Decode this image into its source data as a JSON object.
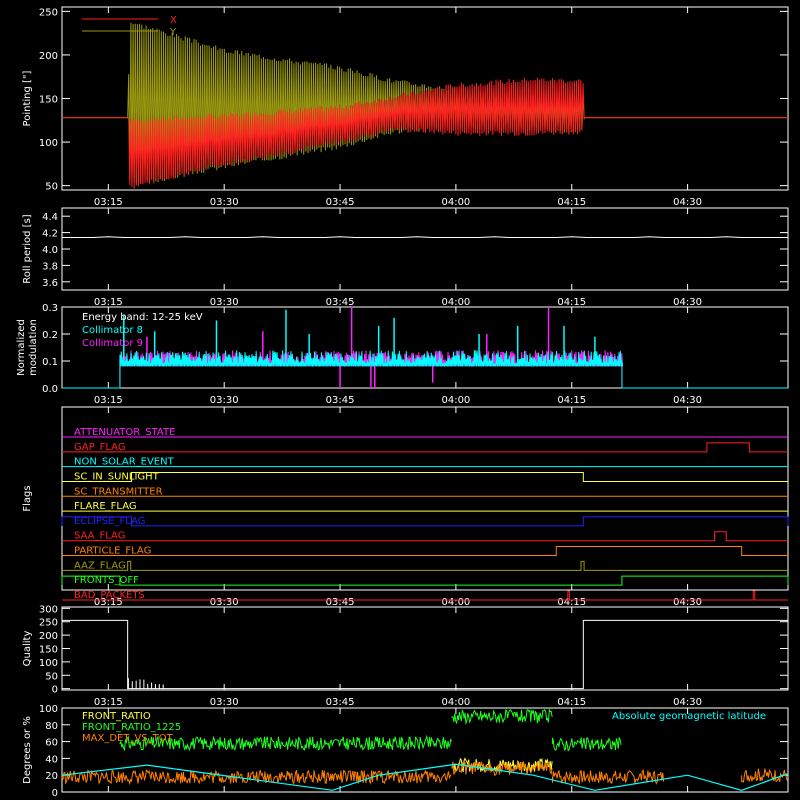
{
  "time_axis": {
    "ticks": [
      "03:15",
      "03:30",
      "03:45",
      "04:00",
      "04:15",
      "04:30"
    ],
    "tick_minutes": [
      195,
      210,
      225,
      240,
      255,
      270
    ],
    "range_minutes": [
      189,
      283
    ]
  },
  "chart_data": [
    {
      "id": "pointing",
      "type": "line",
      "ylabel": "Pointing [\"]",
      "ylim": [
        45,
        255
      ],
      "yticks": [
        50,
        100,
        150,
        200,
        250
      ],
      "legend": [
        {
          "name": "X",
          "color": "#ff2020"
        },
        {
          "name": "Y",
          "color": "#9c9a10"
        }
      ],
      "series": [
        {
          "name": "Y",
          "color": "#9c9a10",
          "baseline": 128,
          "x": [
            189,
            197.5,
            197.8,
            210,
            225,
            232,
            240,
            250,
            256.5,
            256.6,
            283
          ],
          "upper": [
            128,
            128,
            238,
            205,
            185,
            170,
            160,
            155,
            155,
            128,
            128
          ],
          "lower": [
            128,
            128,
            50,
            72,
            95,
            112,
            118,
            115,
            112,
            128,
            128
          ]
        },
        {
          "name": "X",
          "color": "#ff2020",
          "baseline": 128,
          "x": [
            189,
            197.5,
            197.8,
            210,
            225,
            232,
            240,
            250,
            256.5,
            256.6,
            283
          ],
          "upper": [
            128,
            128,
            125,
            130,
            140,
            152,
            165,
            172,
            170,
            128,
            128
          ],
          "lower": [
            128,
            128,
            48,
            75,
            100,
            115,
            110,
            110,
            112,
            128,
            128
          ]
        }
      ]
    },
    {
      "id": "roll_period",
      "type": "line",
      "ylabel": "Roll period [s]",
      "ylim": [
        3.5,
        4.5
      ],
      "yticks": [
        3.6,
        3.8,
        4.0,
        4.2,
        4.4
      ],
      "series": [
        {
          "name": "",
          "color": "#ffffff",
          "x": [
            189,
            283
          ],
          "y": [
            4.14,
            4.14
          ]
        }
      ]
    },
    {
      "id": "modulation",
      "type": "line",
      "ylabel": "Normalized modulation",
      "ylim": [
        0,
        0.3
      ],
      "yticks": [
        0.0,
        0.1,
        0.2,
        0.3
      ],
      "annotation": "Energy band: 12-25 keV",
      "legend": [
        {
          "name": "Collimator 8",
          "color": "#00ffff"
        },
        {
          "name": "Collimator 9",
          "color": "#ff20ff"
        }
      ],
      "active_minutes": [
        196.5,
        261.5
      ],
      "level": 0.09,
      "series": [
        {
          "name": "Collimator 8",
          "color": "#00ffff",
          "spikes_x": [
            197,
            201,
            209,
            218,
            221,
            230,
            232,
            243,
            248,
            254,
            258
          ],
          "spikes_y": [
            0.27,
            0.21,
            0.25,
            0.29,
            0.2,
            0.23,
            0.26,
            0.2,
            0.23,
            0.23,
            0.19
          ]
        },
        {
          "name": "Collimator 9",
          "color": "#ff20ff",
          "spikes_x": [
            200,
            215,
            226.5,
            244,
            252
          ],
          "spikes_y": [
            0.19,
            0.21,
            0.3,
            0.2,
            0.3
          ],
          "dips_x": [
            225,
            229,
            229.5,
            237
          ],
          "dips_y": [
            0.0,
            0.0,
            0.0,
            0.02
          ]
        }
      ]
    },
    {
      "id": "flags",
      "type": "line",
      "ylabel": "Flags",
      "series": [
        {
          "name": "ATTENUATOR_STATE",
          "color": "#ff20ff",
          "steps": []
        },
        {
          "name": "GAP_FLAG",
          "color": "#ff2020",
          "steps": [
            [
              272.5,
              278
            ]
          ]
        },
        {
          "name": "NON_SOLAR_EVENT",
          "color": "#00ffff",
          "steps": []
        },
        {
          "name": "SC_IN_SUNLIGHT",
          "color": "#ffff40",
          "steps": [
            [
              198,
              256.5
            ]
          ]
        },
        {
          "name": "SC_TRANSMITTER",
          "color": "#ff8000",
          "steps": []
        },
        {
          "name": "FLARE_FLAG",
          "color": "#ffff40",
          "steps": []
        },
        {
          "name": "ECLIPSE_FLAG",
          "color": "#2020ff",
          "steps": [
            [
              189,
              198
            ],
            [
              256.5,
              283
            ]
          ]
        },
        {
          "name": "SAA_FLAG",
          "color": "#ff2020",
          "steps": [
            [
              273.5,
              275
            ]
          ]
        },
        {
          "name": "PARTICLE_FLAG",
          "color": "#ff8000",
          "steps": [
            [
              253,
              277
            ]
          ]
        },
        {
          "name": "AAZ_FLAG",
          "color": "#9c9a10",
          "steps": [
            [
              197.5,
              197.9
            ],
            [
              256.2,
              256.6
            ]
          ]
        },
        {
          "name": "FRONTS_OFF",
          "color": "#20ff20",
          "steps": [
            [
              189,
              196.5
            ],
            [
              261.5,
              283
            ]
          ]
        },
        {
          "name": "BAD_PACKETS",
          "color": "#ff2020",
          "steps": [
            [
              254.5,
              254.7
            ],
            [
              278.5,
              278.7
            ]
          ]
        }
      ]
    },
    {
      "id": "quality",
      "type": "line",
      "ylabel": "Quality",
      "ylim": [
        -5,
        305
      ],
      "yticks": [
        0,
        50,
        100,
        150,
        200,
        250,
        300
      ],
      "series": [
        {
          "name": "",
          "color": "#ffffff",
          "x": [
            189,
            197.5,
            197.5,
            256.5,
            256.5,
            283
          ],
          "y": [
            255,
            255,
            0,
            0,
            255,
            255
          ]
        }
      ]
    },
    {
      "id": "ratios",
      "type": "line",
      "ylabel": "Degrees or %",
      "ylim": [
        0,
        100
      ],
      "yticks": [
        0,
        20,
        40,
        60,
        80,
        100
      ],
      "legend": [
        {
          "name": "FRONT_RATIO",
          "color": "#ffff40"
        },
        {
          "name": "FRONT_RATIO_1225",
          "color": "#20ff20"
        },
        {
          "name": "MAX_DET_VS_TOT",
          "color": "#ff8000"
        }
      ],
      "annotation": "Absolute geomagnetic latitude",
      "annotation_color": "#00ffff",
      "series": [
        {
          "name": "FRONT_RATIO_1225",
          "color": "#20ff20",
          "segments": [
            [
              196.5,
              239.5,
              58
            ],
            [
              239.5,
              252.5,
              90
            ],
            [
              252.5,
              261.5,
              57
            ]
          ]
        },
        {
          "name": "FRONT_RATIO",
          "color": "#ffff40",
          "segments": [
            [
              239.5,
              252.5,
              32
            ]
          ]
        },
        {
          "name": "MAX_DET_VS_TOT",
          "color": "#ff8000",
          "segments": [
            [
              189,
              239.5,
              18
            ],
            [
              239.5,
              252.5,
              28
            ],
            [
              252.5,
              267,
              18
            ],
            [
              277,
              283,
              20
            ]
          ]
        },
        {
          "name": "Absolute geomagnetic latitude",
          "color": "#00ffff",
          "x": [
            189,
            200,
            212,
            224,
            230,
            240,
            250,
            258,
            270,
            277,
            283
          ],
          "y": [
            20,
            32,
            17,
            2,
            20,
            33,
            20,
            2,
            20,
            2,
            22
          ]
        }
      ]
    }
  ]
}
